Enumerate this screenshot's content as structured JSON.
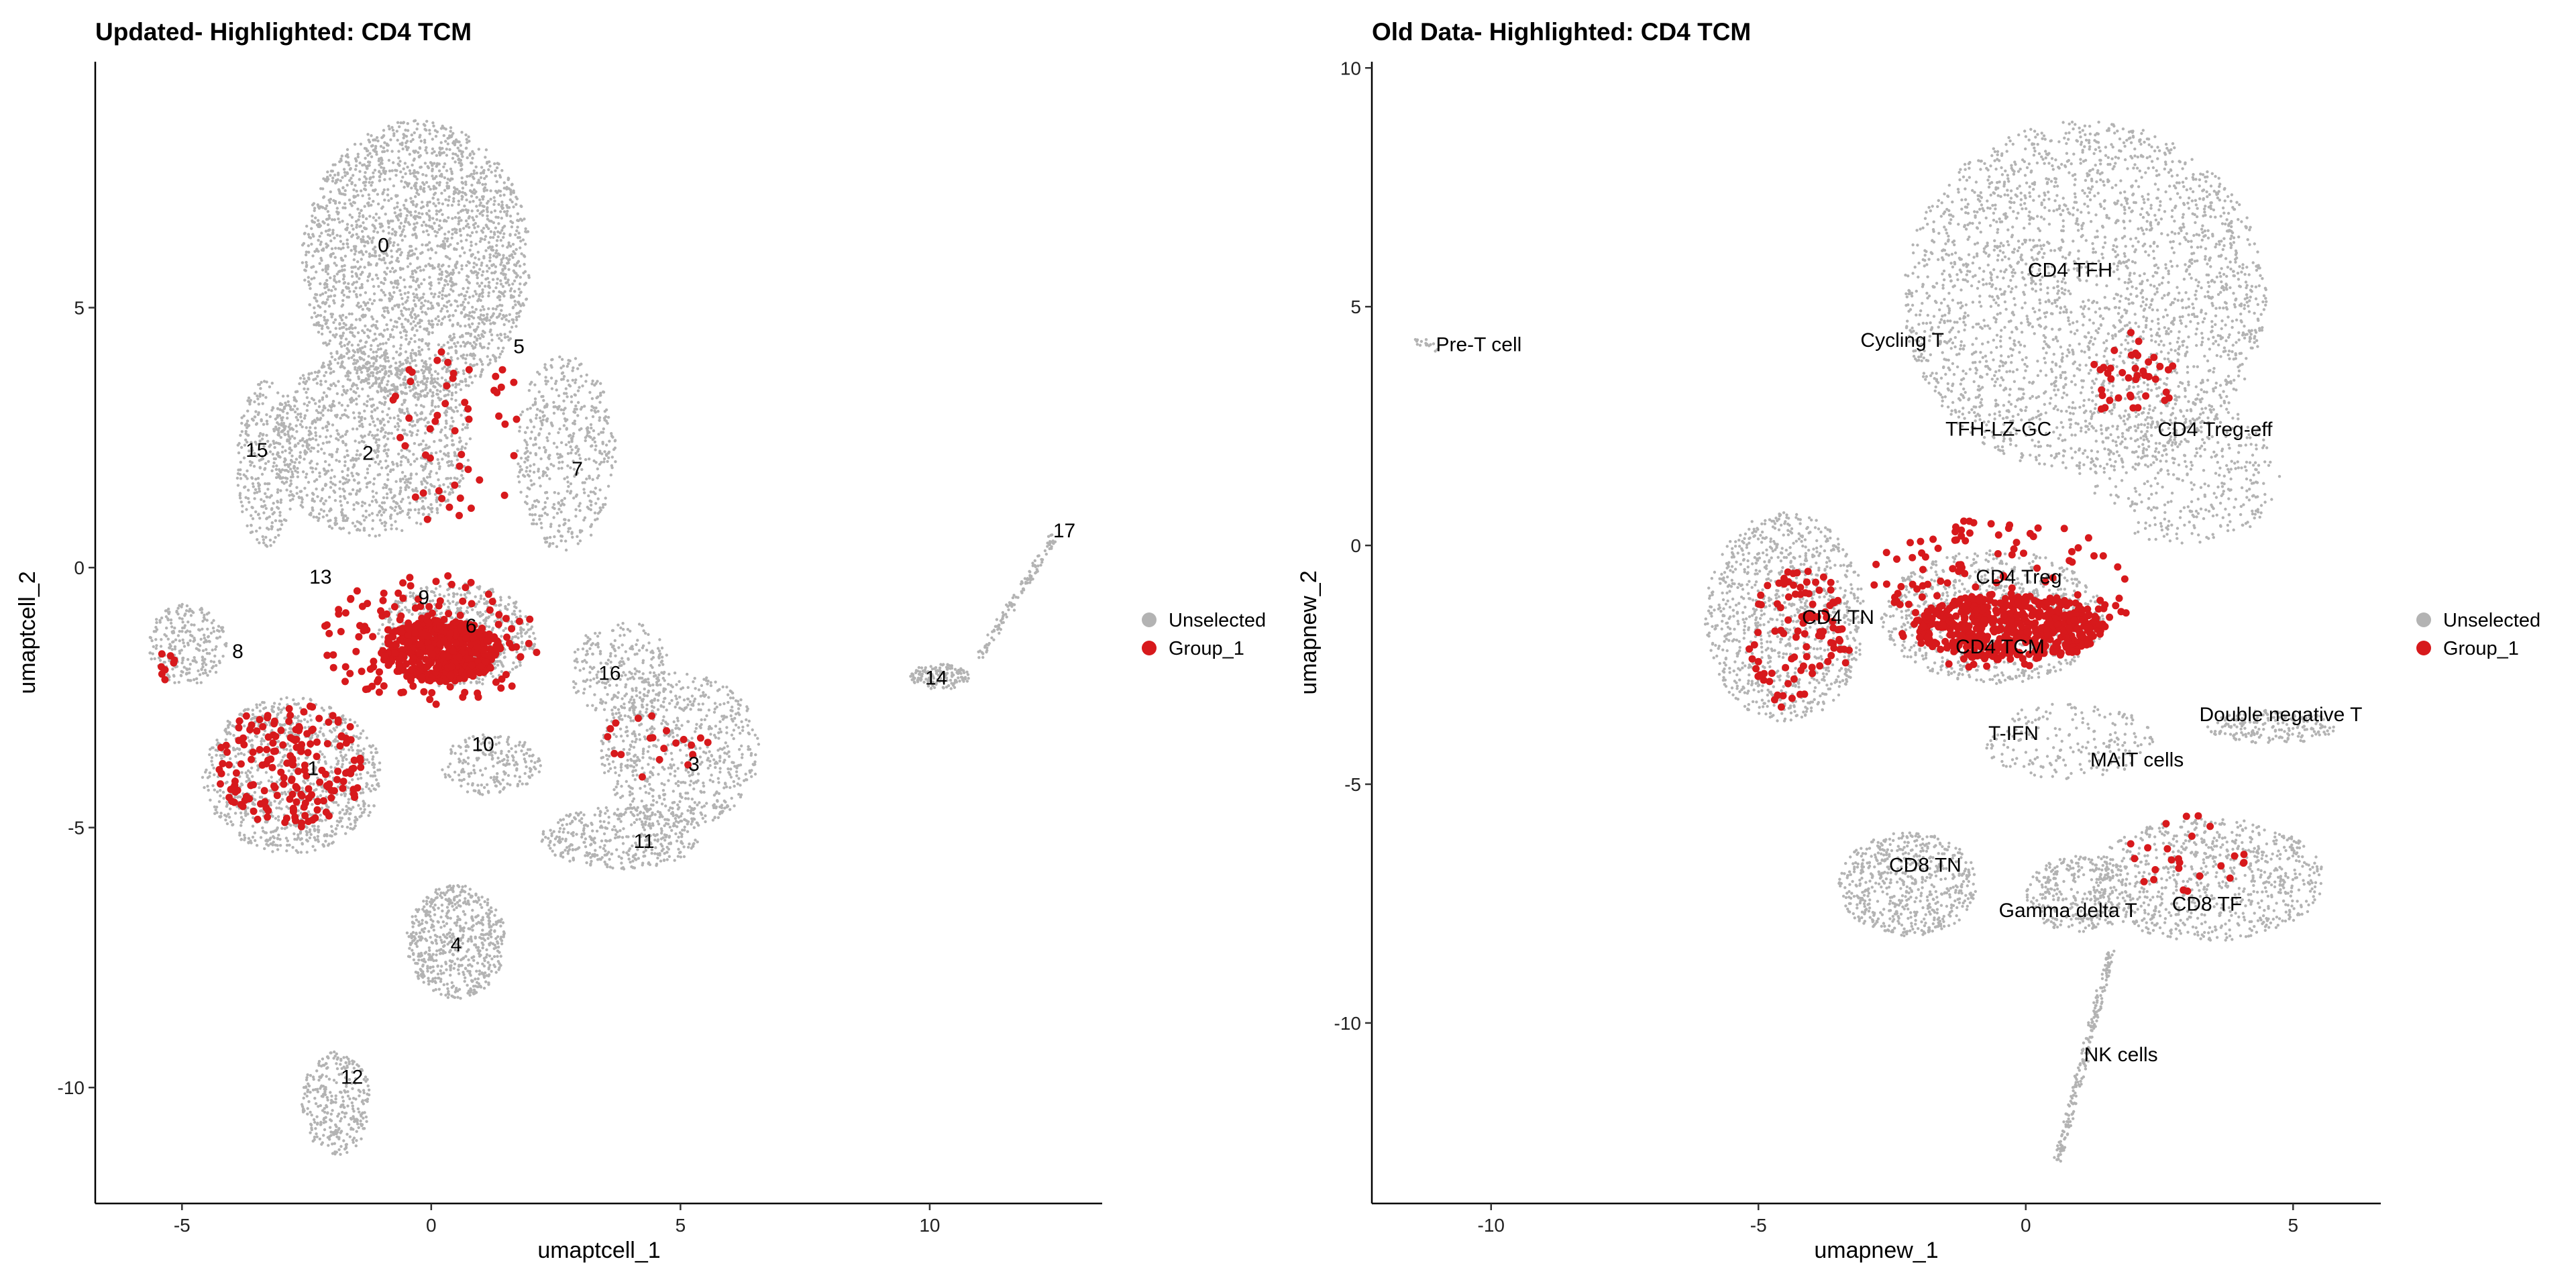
{
  "chart_data": [
    {
      "type": "scatter",
      "title": "Updated- Highlighted: CD4 TCM",
      "xlabel": "umaptcell_1",
      "ylabel": "umaptcell_2",
      "xlim": [
        -6.74,
        13.46
      ],
      "ylim": [
        -12.23,
        9.73
      ],
      "xticks": [
        -5,
        0,
        5,
        10
      ],
      "yticks": [
        5,
        0,
        -5,
        -10
      ],
      "grid": false,
      "legend": {
        "placement": "right",
        "entries": [
          {
            "label": "Unselected",
            "color": "#b3b3b3"
          },
          {
            "label": "Group_1",
            "color": "#d7191c"
          }
        ]
      },
      "cluster_labels": [
        {
          "text": "0",
          "x": -0.96,
          "y": 6.2
        },
        {
          "text": "5",
          "x": 1.76,
          "y": 4.25
        },
        {
          "text": "15",
          "x": -3.5,
          "y": 2.26
        },
        {
          "text": "2",
          "x": -1.27,
          "y": 2.2
        },
        {
          "text": "7",
          "x": 2.93,
          "y": 1.9
        },
        {
          "text": "13",
          "x": -2.22,
          "y": -0.18
        },
        {
          "text": "9",
          "x": -0.15,
          "y": -0.57
        },
        {
          "text": "6",
          "x": 0.8,
          "y": -1.12
        },
        {
          "text": "8",
          "x": -3.88,
          "y": -1.61
        },
        {
          "text": "16",
          "x": 3.58,
          "y": -2.03
        },
        {
          "text": "14",
          "x": 10.13,
          "y": -2.12
        },
        {
          "text": "17",
          "x": 12.7,
          "y": 0.71
        },
        {
          "text": "10",
          "x": 1.04,
          "y": -3.4
        },
        {
          "text": "3",
          "x": 5.27,
          "y": -3.78
        },
        {
          "text": "1",
          "x": -2.37,
          "y": -3.86
        },
        {
          "text": "11",
          "x": 4.27,
          "y": -5.26
        },
        {
          "text": "4",
          "x": 0.5,
          "y": -7.25
        },
        {
          "text": "12",
          "x": -1.59,
          "y": -9.8
        }
      ],
      "unselected_regions": [
        {
          "cx": -0.3,
          "cy": 5.9,
          "rx": 2.3,
          "ry": 2.7,
          "n": 2400
        },
        {
          "cx": -1.2,
          "cy": 2.4,
          "rx": 2.0,
          "ry": 1.8,
          "n": 1200
        },
        {
          "cx": 2.7,
          "cy": 2.2,
          "rx": 1.0,
          "ry": 1.9,
          "n": 500
        },
        {
          "cx": -3.3,
          "cy": 2.0,
          "rx": 0.6,
          "ry": 1.6,
          "n": 300
        },
        {
          "cx": 0.5,
          "cy": -1.3,
          "rx": 1.6,
          "ry": 1.0,
          "n": 700
        },
        {
          "cx": -2.8,
          "cy": -4.0,
          "rx": 1.8,
          "ry": 1.5,
          "n": 1000
        },
        {
          "cx": -4.9,
          "cy": -1.5,
          "rx": 0.8,
          "ry": 0.8,
          "n": 250
        },
        {
          "cx": 5.0,
          "cy": -3.5,
          "rx": 1.6,
          "ry": 1.5,
          "n": 700
        },
        {
          "cx": 3.8,
          "cy": -5.2,
          "rx": 1.6,
          "ry": 0.6,
          "n": 400
        },
        {
          "cx": 3.8,
          "cy": -2.0,
          "rx": 1.0,
          "ry": 1.0,
          "n": 250
        },
        {
          "cx": 1.2,
          "cy": -3.8,
          "rx": 1.0,
          "ry": 0.6,
          "n": 200
        },
        {
          "cx": 0.5,
          "cy": -7.2,
          "rx": 1.0,
          "ry": 1.1,
          "n": 600
        },
        {
          "cx": -1.9,
          "cy": -10.3,
          "rx": 0.7,
          "ry": 1.0,
          "n": 300
        },
        {
          "cx": 10.2,
          "cy": -2.1,
          "rx": 0.6,
          "ry": 0.25,
          "n": 150
        },
        {
          "line": [
            11.0,
            -1.7,
            12.5,
            0.6
          ],
          "n": 120
        }
      ],
      "group_regions": [
        {
          "cx": 0.2,
          "cy": -1.6,
          "rx": 1.2,
          "ry": 0.6,
          "n": 500
        },
        {
          "cx": 0.0,
          "cy": -1.4,
          "rx": 2.2,
          "ry": 1.3,
          "n": 150
        },
        {
          "cx": -2.8,
          "cy": -3.8,
          "rx": 1.5,
          "ry": 1.2,
          "n": 180
        },
        {
          "cx": 0.5,
          "cy": 2.5,
          "rx": 1.5,
          "ry": 1.8,
          "n": 50
        },
        {
          "cx": 4.5,
          "cy": -3.5,
          "rx": 1.2,
          "ry": 0.7,
          "n": 20
        },
        {
          "cx": -5.3,
          "cy": -1.9,
          "rx": 0.2,
          "ry": 0.3,
          "n": 8
        }
      ]
    },
    {
      "type": "scatter",
      "title": "Old Data- Highlighted: CD4 TCM",
      "xlabel": "umapnew_1",
      "ylabel": "umapnew_2",
      "xlim": [
        -12.23,
        6.64
      ],
      "ylim": [
        -13.78,
        10.13
      ],
      "xticks": [
        -10,
        -5,
        0,
        5
      ],
      "yticks": [
        10,
        5,
        0,
        -5,
        -10
      ],
      "grid": false,
      "legend": {
        "placement": "right",
        "entries": [
          {
            "label": "Unselected",
            "color": "#b3b3b3"
          },
          {
            "label": "Group_1",
            "color": "#d7191c"
          }
        ]
      },
      "cluster_labels": [
        {
          "text": "CD4 TFH",
          "x": 0.83,
          "y": 5.77
        },
        {
          "text": "Cycling T",
          "x": -2.31,
          "y": 4.3
        },
        {
          "text": "Pre-T cell",
          "x": -10.23,
          "y": 4.21
        },
        {
          "text": "TFH-LZ-GC",
          "x": -0.51,
          "y": 2.44
        },
        {
          "text": "CD4 Treg-eff",
          "x": 3.54,
          "y": 2.43
        },
        {
          "text": "CD4 Treg",
          "x": -0.13,
          "y": -0.66
        },
        {
          "text": "CD4 TN",
          "x": -3.51,
          "y": -1.5
        },
        {
          "text": "CD4 TCM",
          "x": -0.48,
          "y": -2.12
        },
        {
          "text": "Double negative T",
          "x": 4.77,
          "y": -3.54
        },
        {
          "text": "T-IFN",
          "x": -0.23,
          "y": -3.93
        },
        {
          "text": "MAIT cells",
          "x": 2.08,
          "y": -4.49
        },
        {
          "text": "CD8 TN",
          "x": -1.88,
          "y": -6.69
        },
        {
          "text": "Gamma delta T",
          "x": 0.79,
          "y": -7.64
        },
        {
          "text": "CD8 TF",
          "x": 3.39,
          "y": -7.51
        },
        {
          "text": "NK cells",
          "x": 1.78,
          "y": -10.66
        }
      ],
      "unselected_regions": [
        {
          "cx": 1.1,
          "cy": 5.2,
          "rx": 3.4,
          "ry": 3.7,
          "n": 2600
        },
        {
          "cx": 3.0,
          "cy": 1.5,
          "rx": 1.8,
          "ry": 1.5,
          "n": 400
        },
        {
          "cx": -4.5,
          "cy": -1.5,
          "rx": 1.5,
          "ry": 2.2,
          "n": 1000
        },
        {
          "cx": -0.6,
          "cy": -1.5,
          "rx": 2.1,
          "ry": 1.4,
          "n": 900
        },
        {
          "cx": 4.6,
          "cy": -3.8,
          "rx": 1.2,
          "ry": 0.35,
          "n": 200
        },
        {
          "cx": 0.8,
          "cy": -4.1,
          "rx": 1.6,
          "ry": 0.8,
          "n": 200
        },
        {
          "cx": -2.2,
          "cy": -7.1,
          "rx": 1.3,
          "ry": 1.1,
          "n": 600
        },
        {
          "cx": 3.4,
          "cy": -7.0,
          "rx": 2.2,
          "ry": 1.3,
          "n": 800
        },
        {
          "cx": 1.0,
          "cy": -7.3,
          "rx": 1.0,
          "ry": 0.8,
          "n": 300
        },
        {
          "line": [
            1.6,
            -8.5,
            0.6,
            -12.9
          ],
          "n": 200
        },
        {
          "line": [
            -11.35,
            4.3,
            -11.05,
            4.12
          ],
          "n": 15
        }
      ],
      "group_regions": [
        {
          "cx": -0.3,
          "cy": -1.7,
          "rx": 1.8,
          "ry": 0.7,
          "n": 500
        },
        {
          "cx": -0.5,
          "cy": -1.0,
          "rx": 2.5,
          "ry": 1.6,
          "n": 150
        },
        {
          "cx": -4.2,
          "cy": -2.0,
          "rx": 1.0,
          "ry": 1.5,
          "n": 100
        },
        {
          "cx": 2.0,
          "cy": 3.5,
          "rx": 0.8,
          "ry": 1.0,
          "n": 40
        },
        {
          "cx": 3.0,
          "cy": -6.5,
          "rx": 1.2,
          "ry": 0.9,
          "n": 25
        }
      ]
    }
  ]
}
